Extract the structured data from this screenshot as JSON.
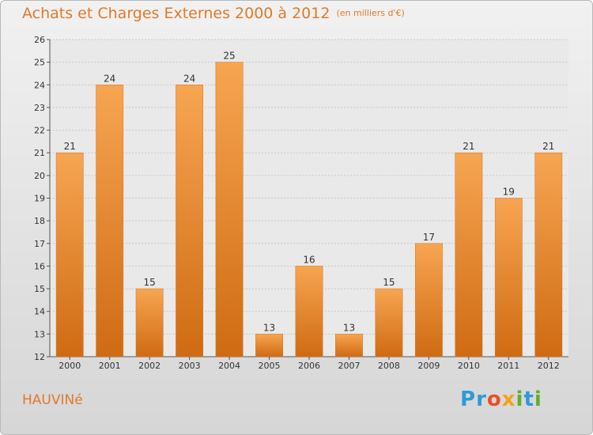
{
  "title": "Achats et Charges Externes 2000 à 2012",
  "unit": "(en milliers d'€)",
  "place_name": "HAUVINé",
  "logo": {
    "letters": [
      {
        "char": "P",
        "color": "#2e9ad8"
      },
      {
        "char": "r",
        "color": "#2e9ad8"
      },
      {
        "char": "o",
        "color": "#e94e2b"
      },
      {
        "char": "x",
        "color": "#f2a21b"
      },
      {
        "char": "i",
        "color": "#62ad2f"
      },
      {
        "char": "t",
        "color": "#2e9ad8"
      },
      {
        "char": "i",
        "color": "#62ad2f"
      }
    ]
  },
  "chart_data": {
    "type": "bar",
    "categories": [
      "2000",
      "2001",
      "2002",
      "2003",
      "2004",
      "2005",
      "2006",
      "2007",
      "2008",
      "2009",
      "2010",
      "2011",
      "2012"
    ],
    "values": [
      21,
      24,
      15,
      24,
      25,
      13,
      16,
      13,
      15,
      17,
      21,
      19,
      21
    ],
    "title": "Achats et Charges Externes 2000 à 2012",
    "xlabel": "",
    "ylabel": "",
    "ylim": [
      12,
      26
    ],
    "yticks": [
      12,
      13,
      14,
      15,
      16,
      17,
      18,
      19,
      20,
      21,
      22,
      23,
      24,
      25,
      26
    ],
    "grid": true,
    "bar_color": "#f08a2c"
  }
}
